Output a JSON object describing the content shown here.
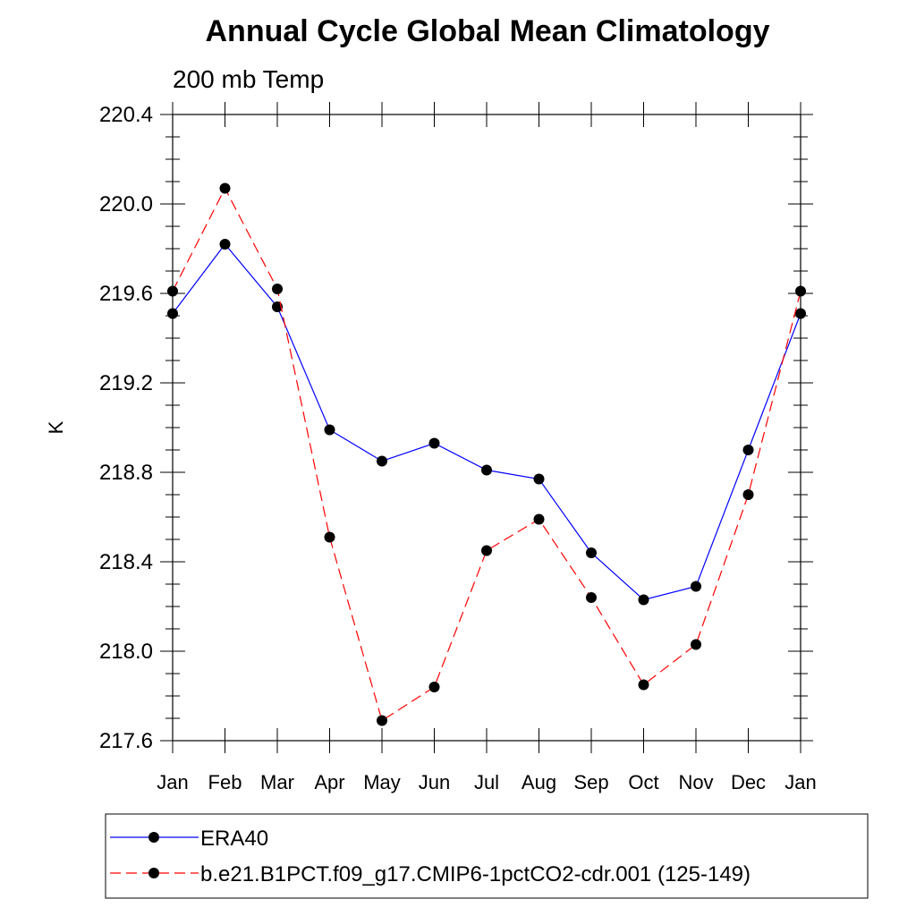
{
  "chart_data": {
    "type": "line",
    "title": "Annual Cycle Global Mean Climatology",
    "subtitle": "200 mb Temp",
    "xlabel": "",
    "ylabel": "K",
    "categories": [
      "Jan",
      "Feb",
      "Mar",
      "Apr",
      "May",
      "Jun",
      "Jul",
      "Aug",
      "Sep",
      "Oct",
      "Nov",
      "Dec",
      "Jan"
    ],
    "ylim": [
      217.6,
      220.4
    ],
    "yticks": [
      "217.6",
      "218.0",
      "218.4",
      "218.8",
      "219.2",
      "219.6",
      "220.0",
      "220.4"
    ],
    "grid": false,
    "legend_position": "bottom",
    "series": [
      {
        "name": "ERA40",
        "color": "#0000ff",
        "dash": "solid",
        "values": [
          219.51,
          219.82,
          219.54,
          218.99,
          218.85,
          218.93,
          218.81,
          218.77,
          218.44,
          218.23,
          218.29,
          218.9,
          219.51
        ]
      },
      {
        "name": "b.e21.B1PCT.f09_g17.CMIP6-1pctCO2-cdr.001 (125-149)",
        "color": "#ff0000",
        "dash": "dashed",
        "values": [
          219.61,
          220.07,
          219.62,
          218.51,
          217.69,
          217.84,
          218.45,
          218.59,
          218.24,
          217.85,
          218.03,
          218.7,
          219.61
        ]
      }
    ]
  }
}
